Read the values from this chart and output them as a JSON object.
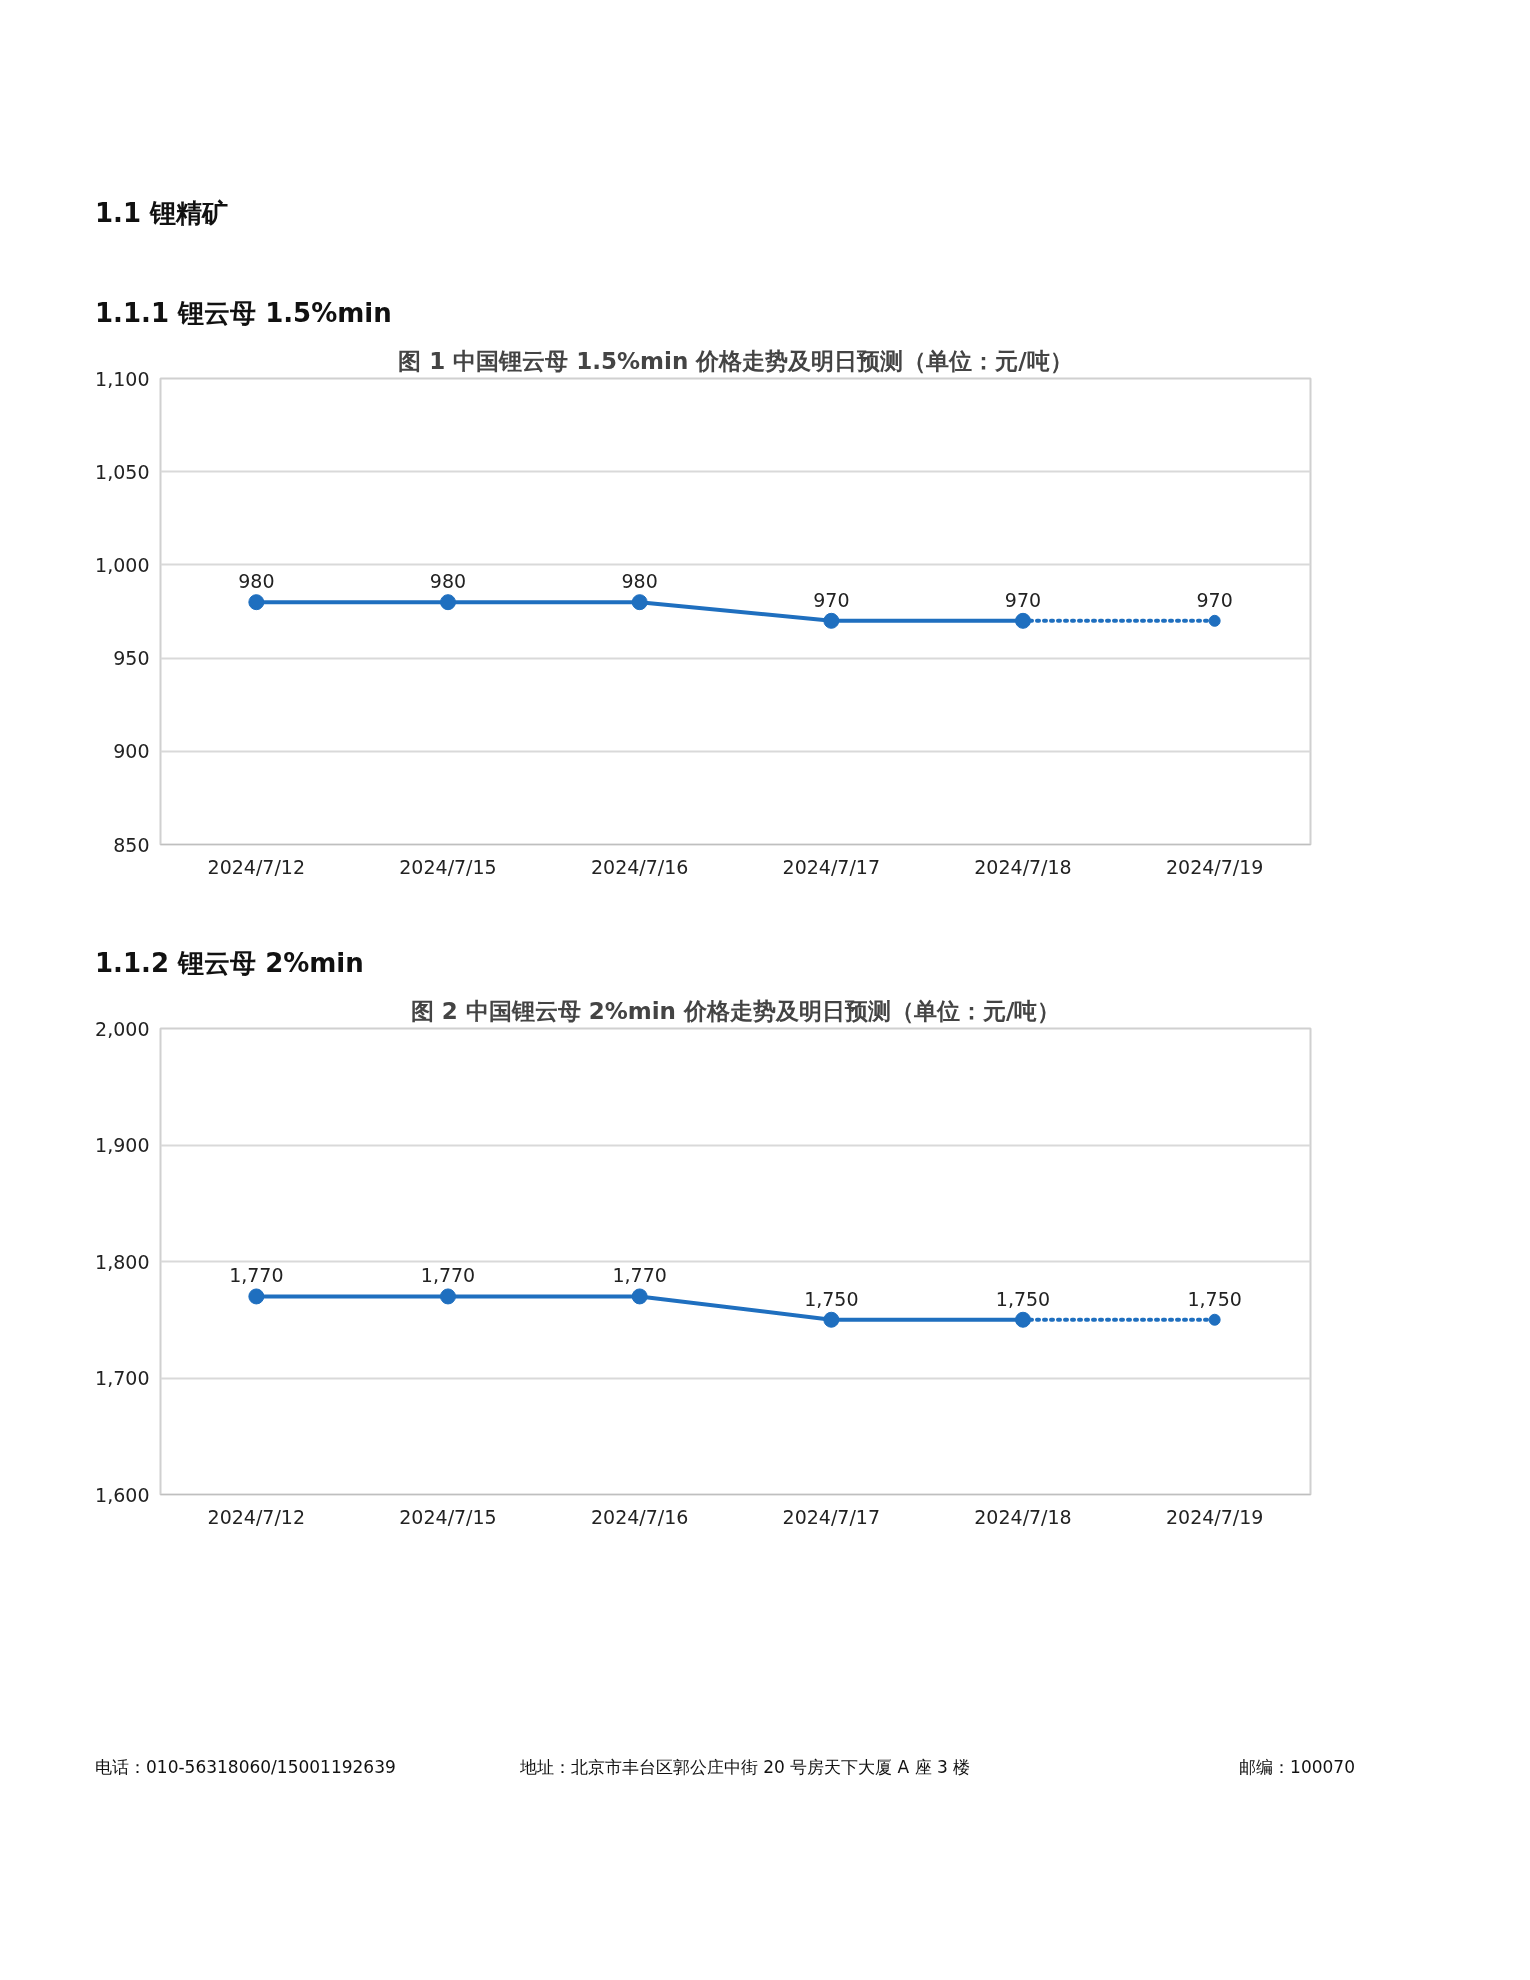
{
  "chart_data": [
    {
      "type": "line",
      "title": "图 1 中国锂云母 1.5%min 价格走势及明日预测（单位：元/吨）",
      "annotations": [
        "1.1 锂精矿",
        "1.1.1 锂云母 1.5%min"
      ],
      "categories": [
        "2024/7/12",
        "2024/7/15",
        "2024/7/16",
        "2024/7/17",
        "2024/7/18",
        "2024/7/19"
      ],
      "series": [
        {
          "color": "#1f6fbf",
          "line_style": "solid",
          "values": [
            980,
            980,
            980,
            970,
            970,
            null
          ],
          "value_labels": [
            "980",
            "980",
            "980",
            "970",
            "970",
            null
          ]
        },
        {
          "color": "#1f6fbf",
          "line_style": "dotted",
          "values": [
            null,
            null,
            null,
            null,
            970,
            970
          ],
          "value_labels": [
            null,
            null,
            null,
            null,
            null,
            "970"
          ]
        }
      ],
      "ylim": [
        850,
        1100
      ],
      "yticks": [
        850,
        900,
        950,
        {
          "value": 1000,
          "label": "1,000"
        },
        {
          "value": 1050,
          "label": "1,050"
        },
        {
          "value": 1100,
          "label": "1,100"
        }
      ],
      "grid": "y",
      "marker": "circle"
    },
    {
      "type": "line",
      "title": "图 2 中国锂云母 2%min 价格走势及明日预测（单位：元/吨）",
      "annotations": [
        "1.1.2 锂云母 2%min"
      ],
      "categories": [
        "2024/7/12",
        "2024/7/15",
        "2024/7/16",
        "2024/7/17",
        "2024/7/18",
        "2024/7/19"
      ],
      "series": [
        {
          "color": "#1f6fbf",
          "line_style": "solid",
          "values": [
            1770,
            1770,
            1770,
            1750,
            1750,
            null
          ],
          "value_labels": [
            "1,770",
            "1,770",
            "1,770",
            "1,750",
            "1,750",
            null
          ]
        },
        {
          "color": "#1f6fbf",
          "line_style": "dotted",
          "values": [
            null,
            null,
            null,
            null,
            1750,
            1750
          ],
          "value_labels": [
            null,
            null,
            null,
            null,
            null,
            "1,750"
          ]
        }
      ],
      "ylim": [
        1600,
        2000
      ],
      "yticks": [
        {
          "value": 1600,
          "label": "1,600"
        },
        {
          "value": 1700,
          "label": "1,700"
        },
        {
          "value": 1800,
          "label": "1,800"
        },
        {
          "value": 1900,
          "label": "1,900"
        },
        {
          "value": 2000,
          "label": "2,000"
        }
      ],
      "grid": "y",
      "marker": "circle"
    },
    {
      "type": "other",
      "annotations": [
        "电话：010-56318060/15001192639",
        "地址：北京市丰台区郭公庄中街 20 号房天下大厦 A 座 3 楼",
        "邮编：100070"
      ]
    }
  ]
}
